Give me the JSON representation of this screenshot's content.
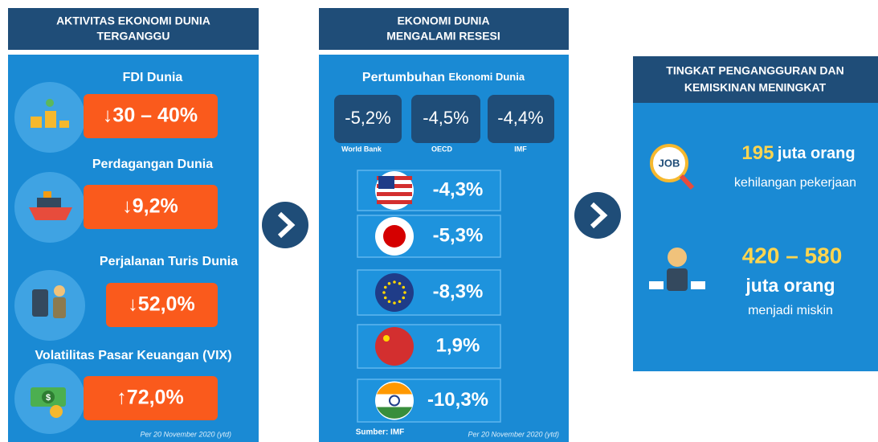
{
  "panels": [
    {
      "title": [
        "AKTIVITAS EKONOMI DUNIA",
        "TERGANGGU"
      ],
      "items": [
        {
          "label": "FDI Dunia",
          "value": "↓30 – 40%"
        },
        {
          "label": "Perdagangan Dunia",
          "value": "↓9,2%"
        },
        {
          "label": "Perjalanan Turis Dunia",
          "value": "↓52,0%"
        },
        {
          "label": "Volatilitas Pasar Keuangan (VIX)",
          "value": "↑72,0%",
          "icon_text": "$"
        }
      ],
      "note": "Per 20 November 2020 (ytd)"
    },
    {
      "title": [
        "EKONOMI DUNIA",
        "MENGALAMI RESESI"
      ],
      "subtitle": {
        "bold": "Pertumbuhan",
        "rest": "Ekonomi Dunia"
      },
      "forecasts": [
        {
          "value": "-5,2%",
          "source": "World Bank"
        },
        {
          "value": "-4,5%",
          "source": "OECD"
        },
        {
          "value": "-4,4%",
          "source": "IMF"
        }
      ],
      "countries": [
        "-4,3%",
        "-5,3%",
        "-8,3%",
        "1,9%",
        "-10,3%"
      ],
      "source": "Sumber: IMF",
      "note": "Per 20 November 2020 (ytd)"
    },
    {
      "title": [
        "TINGKAT PENGANGGURAN DAN",
        "KEMISKINAN MENINGKAT"
      ],
      "icon_text": "JOB",
      "items": [
        {
          "number": "195",
          "unit": "juta orang",
          "desc": "kehilangan pekerjaan"
        },
        {
          "number": "420 – 580",
          "unit": "juta orang",
          "desc": "menjadi miskin"
        }
      ]
    }
  ]
}
